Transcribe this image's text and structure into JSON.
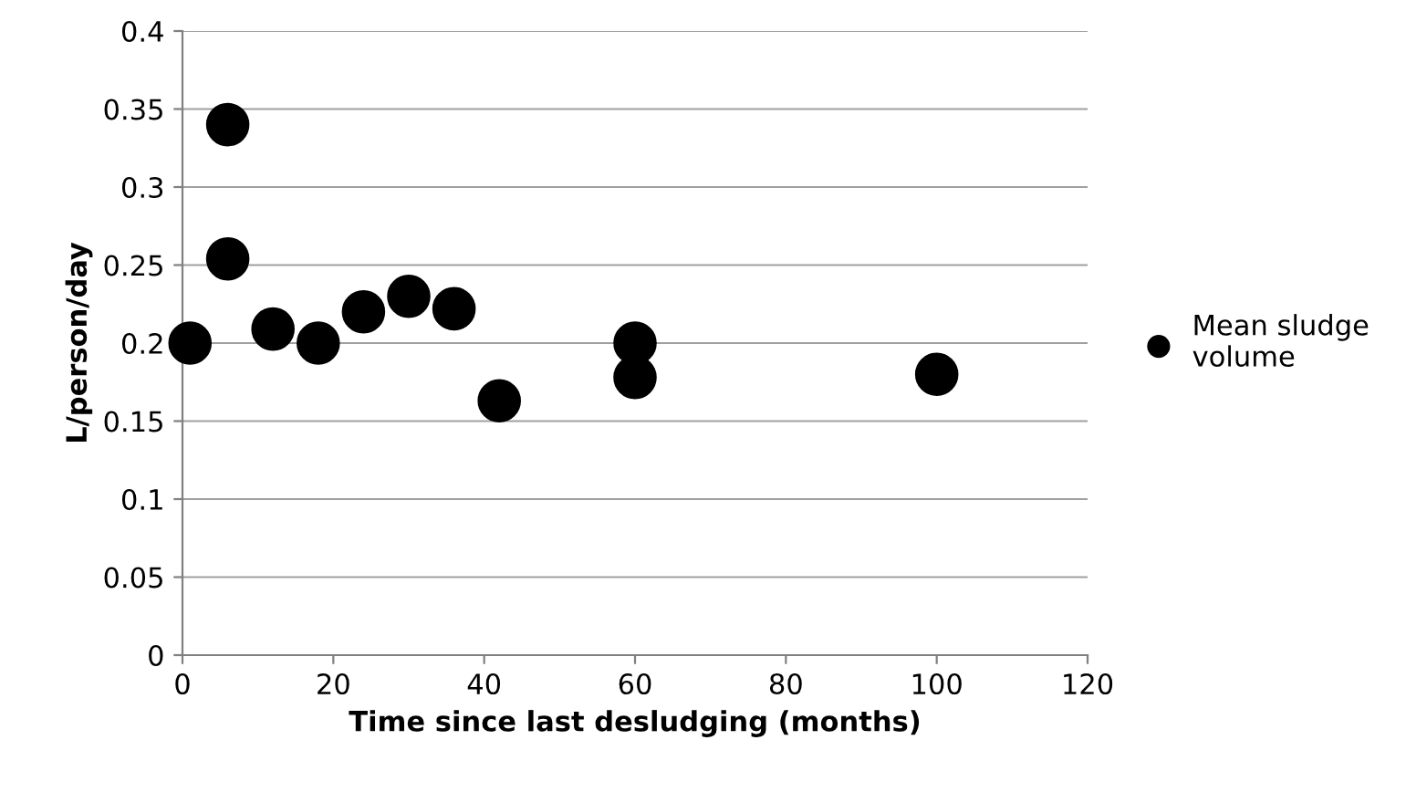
{
  "chart_data": {
    "type": "scatter",
    "xlabel": "Time since last desludging (months)",
    "ylabel": "L/person/day",
    "x": [
      1,
      6,
      6,
      12,
      18,
      24,
      30,
      36,
      42,
      60,
      60,
      100
    ],
    "series": [
      {
        "name": "Mean sludge\nvolume",
        "color": "#000000",
        "values": [
          0.2,
          0.34,
          0.254,
          0.209,
          0.2,
          0.22,
          0.23,
          0.222,
          0.163,
          0.2,
          0.178,
          0.18
        ]
      }
    ],
    "xlim": [
      0,
      120
    ],
    "xticks": [
      0,
      20,
      40,
      60,
      80,
      100,
      120
    ],
    "ylim": [
      0,
      0.4
    ],
    "yticks": [
      0,
      0.05,
      0.1,
      0.15,
      0.2,
      0.25,
      0.3,
      0.35,
      0.4
    ],
    "grid": "y",
    "legend": "right",
    "marker": "circle"
  }
}
